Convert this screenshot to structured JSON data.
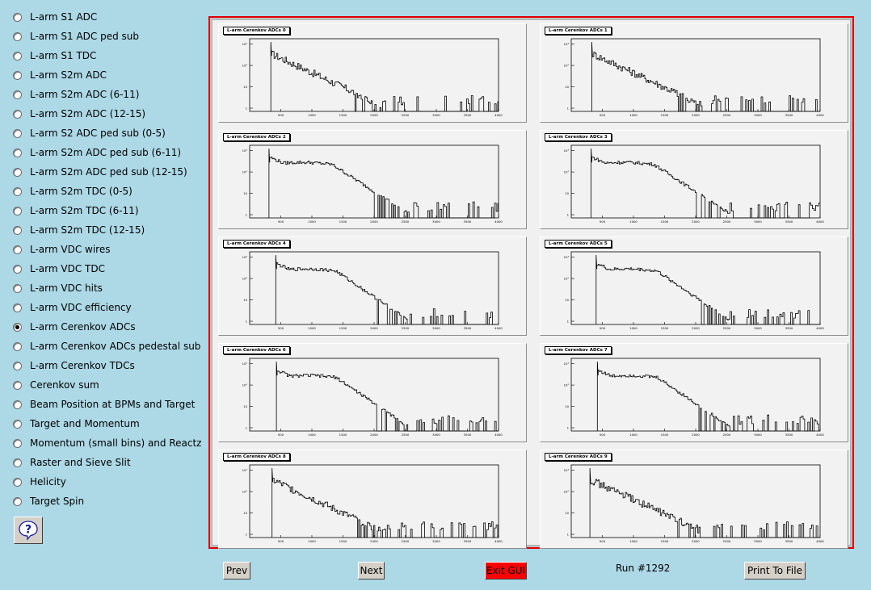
{
  "menu": {
    "items": [
      {
        "label": "L-arm S1 ADC",
        "checked": false
      },
      {
        "label": "L-arm S1 ADC ped sub",
        "checked": false
      },
      {
        "label": "L-arm S1 TDC",
        "checked": false
      },
      {
        "label": "L-arm S2m ADC",
        "checked": false
      },
      {
        "label": "L-arm S2m ADC (6-11)",
        "checked": false
      },
      {
        "label": "L-arm S2m ADC (12-15)",
        "checked": false
      },
      {
        "label": "L-arm S2 ADC ped sub (0-5)",
        "checked": false
      },
      {
        "label": "L-arm S2m ADC ped sub (6-11)",
        "checked": false
      },
      {
        "label": "L-arm S2m ADC ped sub (12-15)",
        "checked": false
      },
      {
        "label": "L-arm S2m TDC (0-5)",
        "checked": false
      },
      {
        "label": "L-arm S2m TDC (6-11)",
        "checked": false
      },
      {
        "label": "L-arm S2m TDC (12-15)",
        "checked": false
      },
      {
        "label": "L-arm VDC wires",
        "checked": false
      },
      {
        "label": "L-arm VDC TDC",
        "checked": false
      },
      {
        "label": "L-arm VDC hits",
        "checked": false
      },
      {
        "label": "L-arm VDC efficiency",
        "checked": false
      },
      {
        "label": "L-arm Cerenkov ADCs",
        "checked": true
      },
      {
        "label": "L-arm Cerenkov ADCs pedestal sub",
        "checked": false
      },
      {
        "label": "L-arm Cerenkov TDCs",
        "checked": false
      },
      {
        "label": "Cerenkov sum",
        "checked": false
      },
      {
        "label": "Beam Position at BPMs and Target",
        "checked": false
      },
      {
        "label": "Target and Momentum",
        "checked": false
      },
      {
        "label": "Momentum (small bins) and Reactz",
        "checked": false
      },
      {
        "label": "Raster and Sieve Slit",
        "checked": false
      },
      {
        "label": "Helicity",
        "checked": false
      },
      {
        "label": "Target Spin",
        "checked": false
      }
    ]
  },
  "help": {
    "icon": "question-icon",
    "glyph": "?"
  },
  "canvas": {
    "pads": [
      {
        "title": "L-arm Cerenkov ADCs 0"
      },
      {
        "title": "L-arm Cerenkov ADCs 1"
      },
      {
        "title": "L-arm Cerenkov ADCs 2"
      },
      {
        "title": "L-arm Cerenkov ADCs 3"
      },
      {
        "title": "L-arm Cerenkov ADCs 4"
      },
      {
        "title": "L-arm Cerenkov ADCs 5"
      },
      {
        "title": "L-arm Cerenkov ADCs 6"
      },
      {
        "title": "L-arm Cerenkov ADCs 7"
      },
      {
        "title": "L-arm Cerenkov ADCs 8"
      },
      {
        "title": "L-arm Cerenkov ADCs 9"
      }
    ],
    "x_ticks": [
      "500",
      "1000",
      "1500",
      "2000",
      "2500",
      "3000",
      "3500",
      "4000"
    ],
    "y_ticks": [
      "1",
      "10",
      "10²",
      "10³"
    ],
    "frame_color": "#e00000"
  },
  "controls": {
    "prev_label": "Prev",
    "next_label": "Next",
    "exit_label": "Exit GUI",
    "run_label": "Run #1292",
    "print_label": "Print To File"
  },
  "chart_data": [
    {
      "type": "bar",
      "title": "L-arm Cerenkov ADCs 0",
      "xlim": [
        0,
        4000
      ],
      "ylog": true,
      "peak_x": 340,
      "shape": "pedestal then falling tail"
    },
    {
      "type": "bar",
      "title": "L-arm Cerenkov ADCs 1",
      "xlim": [
        0,
        4000
      ],
      "ylog": true,
      "peak_x": 330,
      "shape": "pedestal then falling tail"
    },
    {
      "type": "bar",
      "title": "L-arm Cerenkov ADCs 2",
      "xlim": [
        0,
        4000
      ],
      "ylog": true,
      "peak_x": 310,
      "shape": "pedestal then hump then tail"
    },
    {
      "type": "bar",
      "title": "L-arm Cerenkov ADCs 3",
      "xlim": [
        0,
        4000
      ],
      "ylog": true,
      "peak_x": 320,
      "shape": "pedestal then hump then tail"
    },
    {
      "type": "bar",
      "title": "L-arm Cerenkov ADCs 4",
      "xlim": [
        0,
        4000
      ],
      "ylog": true,
      "peak_x": 420,
      "shape": "pedestal then hump then tail"
    },
    {
      "type": "bar",
      "title": "L-arm Cerenkov ADCs 5",
      "xlim": [
        0,
        4000
      ],
      "ylog": true,
      "peak_x": 400,
      "shape": "pedestal then hump then tail"
    },
    {
      "type": "bar",
      "title": "L-arm Cerenkov ADCs 6",
      "xlim": [
        0,
        4000
      ],
      "ylog": true,
      "peak_x": 430,
      "shape": "pedestal then hump then tail"
    },
    {
      "type": "bar",
      "title": "L-arm Cerenkov ADCs 7",
      "xlim": [
        0,
        4000
      ],
      "ylog": true,
      "peak_x": 420,
      "shape": "pedestal then hump then tail"
    },
    {
      "type": "bar",
      "title": "L-arm Cerenkov ADCs 8",
      "xlim": [
        0,
        4000
      ],
      "ylog": true,
      "peak_x": 360,
      "shape": "pedestal then falling tail"
    },
    {
      "type": "bar",
      "title": "L-arm Cerenkov ADCs 9",
      "xlim": [
        0,
        4000
      ],
      "ylog": true,
      "peak_x": 300,
      "shape": "pedestal then falling tail"
    }
  ]
}
